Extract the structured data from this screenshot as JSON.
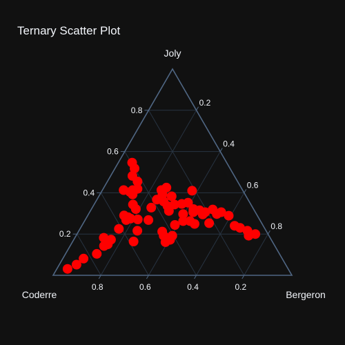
{
  "chart_data": {
    "type": "scatter",
    "subtype": "ternary",
    "title": "Ternary Scatter Plot",
    "axes": {
      "a": {
        "title": "Joly",
        "ticks": [
          "0.2",
          "0.4",
          "0.6",
          "0.8"
        ]
      },
      "b": {
        "title": "Coderre",
        "ticks": [
          "0.2",
          "0.4",
          "0.6",
          "0.8"
        ]
      },
      "c": {
        "title": "Bergeron",
        "ticks": [
          "0.2",
          "0.4",
          "0.6",
          "0.8"
        ]
      }
    },
    "marker_color": "#ff0000",
    "background": "#111111",
    "grid": true,
    "points": [
      {
        "a": 0.546,
        "b": 0.396,
        "c": 0.058
      },
      {
        "a": 0.518,
        "b": 0.4,
        "c": 0.082
      },
      {
        "a": 0.482,
        "b": 0.427,
        "c": 0.091
      },
      {
        "a": 0.455,
        "b": 0.419,
        "c": 0.126
      },
      {
        "a": 0.413,
        "b": 0.498,
        "c": 0.089
      },
      {
        "a": 0.404,
        "b": 0.476,
        "c": 0.12
      },
      {
        "a": 0.413,
        "b": 0.46,
        "c": 0.127
      },
      {
        "a": 0.419,
        "b": 0.437,
        "c": 0.144
      },
      {
        "a": 0.392,
        "b": 0.471,
        "c": 0.137
      },
      {
        "a": 0.413,
        "b": 0.34,
        "c": 0.247
      },
      {
        "a": 0.425,
        "b": 0.313,
        "c": 0.262
      },
      {
        "a": 0.41,
        "b": 0.213,
        "c": 0.377
      },
      {
        "a": 0.392,
        "b": 0.346,
        "c": 0.262
      },
      {
        "a": 0.383,
        "b": 0.312,
        "c": 0.305
      },
      {
        "a": 0.367,
        "b": 0.382,
        "c": 0.251
      },
      {
        "a": 0.358,
        "b": 0.358,
        "c": 0.284
      },
      {
        "a": 0.343,
        "b": 0.32,
        "c": 0.337
      },
      {
        "a": 0.346,
        "b": 0.288,
        "c": 0.366
      },
      {
        "a": 0.352,
        "b": 0.259,
        "c": 0.389
      },
      {
        "a": 0.343,
        "b": 0.494,
        "c": 0.163
      },
      {
        "a": 0.321,
        "b": 0.493,
        "c": 0.186
      },
      {
        "a": 0.328,
        "b": 0.425,
        "c": 0.247
      },
      {
        "a": 0.336,
        "b": 0.353,
        "c": 0.311
      },
      {
        "a": 0.312,
        "b": 0.359,
        "c": 0.329
      },
      {
        "a": 0.321,
        "b": 0.252,
        "c": 0.427
      },
      {
        "a": 0.315,
        "b": 0.229,
        "c": 0.456
      },
      {
        "a": 0.306,
        "b": 0.26,
        "c": 0.434
      },
      {
        "a": 0.306,
        "b": 0.21,
        "c": 0.484
      },
      {
        "a": 0.319,
        "b": 0.172,
        "c": 0.509
      },
      {
        "a": 0.306,
        "b": 0.143,
        "c": 0.551
      },
      {
        "a": 0.297,
        "b": 0.166,
        "c": 0.537
      },
      {
        "a": 0.297,
        "b": 0.307,
        "c": 0.396
      },
      {
        "a": 0.295,
        "b": 0.226,
        "c": 0.479
      },
      {
        "a": 0.289,
        "b": 0.12,
        "c": 0.591
      },
      {
        "a": 0.282,
        "b": 0.545,
        "c": 0.173
      },
      {
        "a": 0.29,
        "b": 0.558,
        "c": 0.152
      },
      {
        "a": 0.275,
        "b": 0.538,
        "c": 0.187
      },
      {
        "a": 0.268,
        "b": 0.56,
        "c": 0.172
      },
      {
        "a": 0.271,
        "b": 0.51,
        "c": 0.219
      },
      {
        "a": 0.268,
        "b": 0.467,
        "c": 0.265
      },
      {
        "a": 0.263,
        "b": 0.324,
        "c": 0.413
      },
      {
        "a": 0.263,
        "b": 0.295,
        "c": 0.442
      },
      {
        "a": 0.249,
        "b": 0.283,
        "c": 0.468
      },
      {
        "a": 0.244,
        "b": 0.368,
        "c": 0.388
      },
      {
        "a": 0.253,
        "b": 0.22,
        "c": 0.527
      },
      {
        "a": 0.24,
        "b": 0.12,
        "c": 0.64
      },
      {
        "a": 0.23,
        "b": 0.102,
        "c": 0.668
      },
      {
        "a": 0.216,
        "b": 0.078,
        "c": 0.706
      },
      {
        "a": 0.225,
        "b": 0.612,
        "c": 0.163
      },
      {
        "a": 0.216,
        "b": 0.539,
        "c": 0.245
      },
      {
        "a": 0.212,
        "b": 0.437,
        "c": 0.351
      },
      {
        "a": 0.192,
        "b": 0.441,
        "c": 0.367
      },
      {
        "a": 0.192,
        "b": 0.405,
        "c": 0.403
      },
      {
        "a": 0.192,
        "b": 0.085,
        "c": 0.723
      },
      {
        "a": 0.2,
        "b": 0.053,
        "c": 0.747
      },
      {
        "a": 0.173,
        "b": 0.671,
        "c": 0.156
      },
      {
        "a": 0.164,
        "b": 0.581,
        "c": 0.255
      },
      {
        "a": 0.15,
        "b": 0.696,
        "c": 0.154
      },
      {
        "a": 0.161,
        "b": 0.449,
        "c": 0.39
      },
      {
        "a": 0.172,
        "b": 0.424,
        "c": 0.404
      },
      {
        "a": 0.104,
        "b": 0.765,
        "c": 0.131
      },
      {
        "a": 0.081,
        "b": 0.832,
        "c": 0.087
      },
      {
        "a": 0.052,
        "b": 0.876,
        "c": 0.072
      },
      {
        "a": 0.031,
        "b": 0.924,
        "c": 0.045
      },
      {
        "a": 0.182,
        "b": 0.697,
        "c": 0.121
      },
      {
        "a": 0.142,
        "b": 0.716,
        "c": 0.142
      }
    ]
  }
}
